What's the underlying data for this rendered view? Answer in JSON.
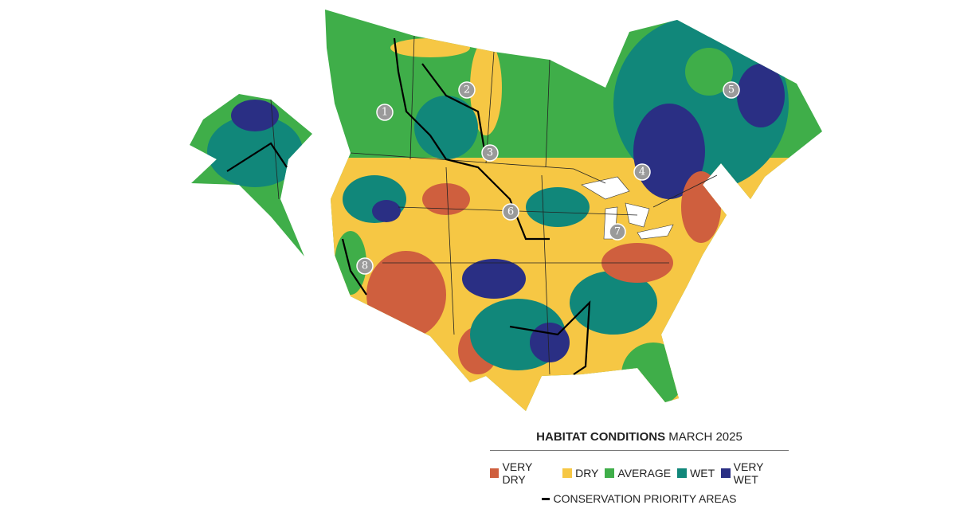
{
  "legend": {
    "title": "HABITAT CONDITIONS",
    "subtitle": "MARCH 2025",
    "items": [
      {
        "label": "VERY DRY",
        "color": "#cf5f3e"
      },
      {
        "label": "DRY",
        "color": "#f6c744"
      },
      {
        "label": "AVERAGE",
        "color": "#3fae49"
      },
      {
        "label": "WET",
        "color": "#11877a"
      },
      {
        "label": "VERY WET",
        "color": "#2a2f84"
      }
    ],
    "line_label": "CONSERVATION PRIORITY AREAS"
  },
  "markers": [
    "1",
    "2",
    "3",
    "4",
    "5",
    "6",
    "7",
    "8"
  ]
}
